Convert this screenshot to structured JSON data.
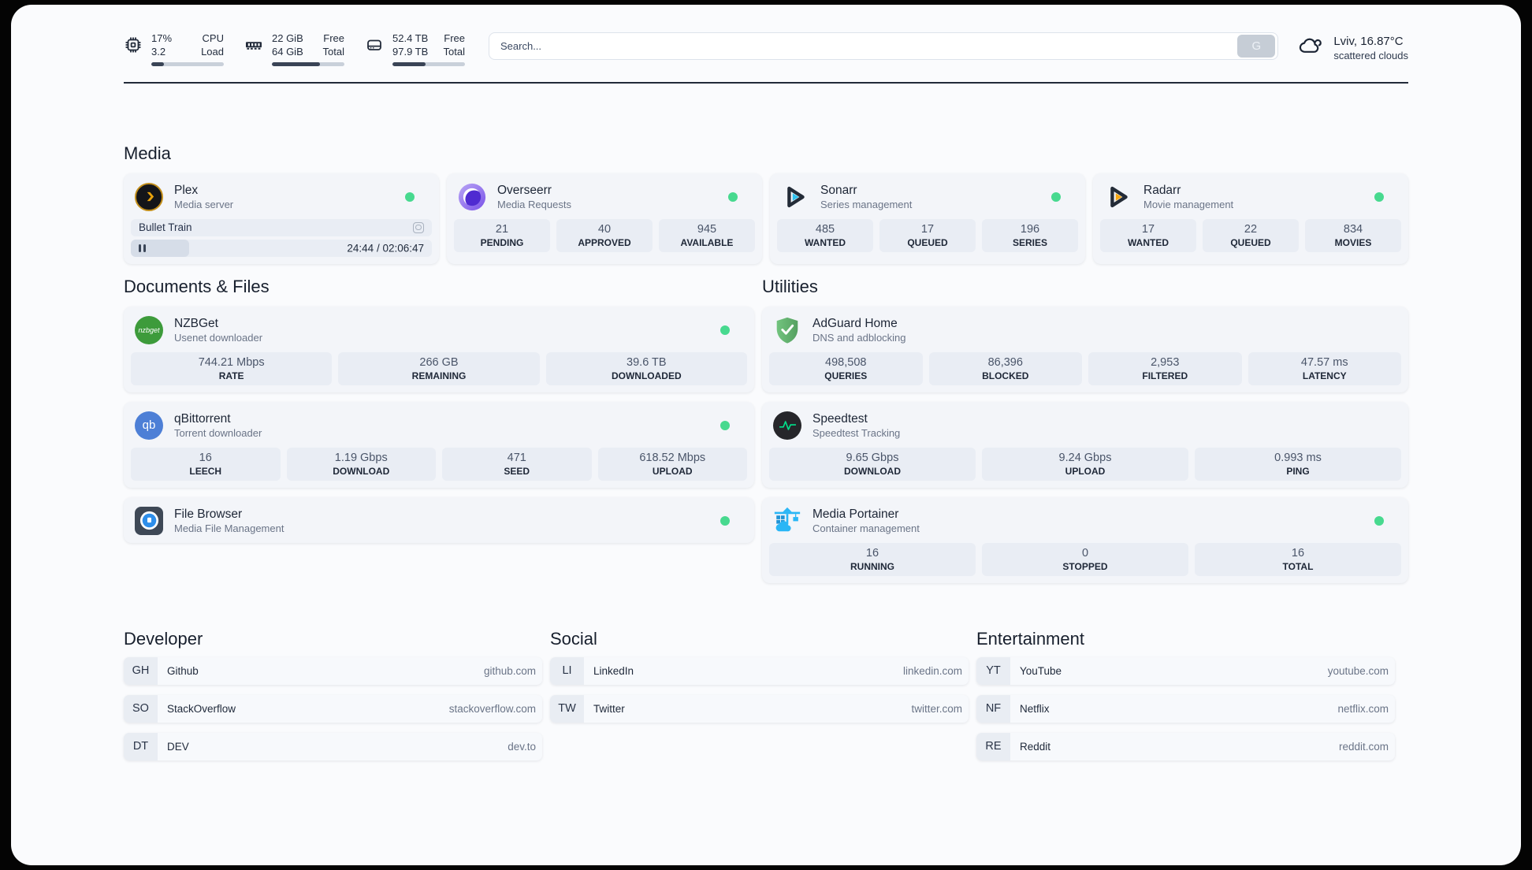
{
  "colors": {
    "status_online": "#47d98f",
    "panel_bg": "#fafbfd",
    "card_bg": "#f3f5f9",
    "tile_bg": "#e9edf4",
    "progress_fill": "#3a4456",
    "plex_gold": "#e8a20c",
    "sonarr_cyan": "#2fc2ef",
    "radarr_amber": "#f7a814",
    "overseerr_purple": "#4f2bd1",
    "nzbget_green": "#3d9b3b",
    "qbittorrent_blue": "#4d7fd6",
    "adguard_green": "#67b279",
    "speedtest_pulse": "#00e08a",
    "portainer_blue": "#2ab6f6"
  },
  "topbar": {
    "cpu": {
      "values": [
        "17%",
        "3.2"
      ],
      "labels": [
        "CPU",
        "Load"
      ],
      "progress_pct": 17
    },
    "ram": {
      "values": [
        "22 GiB",
        "64 GiB"
      ],
      "labels": [
        "Free",
        "Total"
      ],
      "progress_pct": 66
    },
    "disk": {
      "values": [
        "52.4 TB",
        "97.9 TB"
      ],
      "labels": [
        "Free",
        "Total"
      ],
      "progress_pct": 46
    },
    "search": {
      "placeholder": "Search...",
      "button_label": "G"
    },
    "weather": {
      "location": "Lviv, 16.87°C",
      "condition": "scattered clouds"
    }
  },
  "sections": {
    "media": {
      "title": "Media",
      "plex": {
        "title": "Plex",
        "subtitle": "Media server",
        "status": "online",
        "now_playing": "Bullet Train",
        "time_display": "24:44 / 02:06:47",
        "progress_pct": 19.5
      },
      "overseerr": {
        "title": "Overseerr",
        "subtitle": "Media Requests",
        "status": "online",
        "stats": [
          {
            "value": "21",
            "label": "PENDING"
          },
          {
            "value": "40",
            "label": "APPROVED"
          },
          {
            "value": "945",
            "label": "AVAILABLE"
          }
        ]
      },
      "sonarr": {
        "title": "Sonarr",
        "subtitle": "Series management",
        "status": "online",
        "stats": [
          {
            "value": "485",
            "label": "WANTED"
          },
          {
            "value": "17",
            "label": "QUEUED"
          },
          {
            "value": "196",
            "label": "SERIES"
          }
        ]
      },
      "radarr": {
        "title": "Radarr",
        "subtitle": "Movie management",
        "status": "online",
        "stats": [
          {
            "value": "17",
            "label": "WANTED"
          },
          {
            "value": "22",
            "label": "QUEUED"
          },
          {
            "value": "834",
            "label": "MOVIES"
          }
        ]
      }
    },
    "documents": {
      "title": "Documents & Files",
      "nzbget": {
        "title": "NZBGet",
        "subtitle": "Usenet downloader",
        "status": "online",
        "icon_text": "nzbget",
        "stats": [
          {
            "value": "744.21 Mbps",
            "label": "RATE"
          },
          {
            "value": "266 GB",
            "label": "REMAINING"
          },
          {
            "value": "39.6 TB",
            "label": "DOWNLOADED"
          }
        ]
      },
      "qbittorrent": {
        "title": "qBittorrent",
        "subtitle": "Torrent downloader",
        "status": "online",
        "icon_text": "qb",
        "stats": [
          {
            "value": "16",
            "label": "LEECH"
          },
          {
            "value": "1.19 Gbps",
            "label": "DOWNLOAD"
          },
          {
            "value": "471",
            "label": "SEED"
          },
          {
            "value": "618.52 Mbps",
            "label": "UPLOAD"
          }
        ]
      },
      "filebrowser": {
        "title": "File Browser",
        "subtitle": "Media File Management",
        "status": "online"
      }
    },
    "utilities": {
      "title": "Utilities",
      "adguard": {
        "title": "AdGuard Home",
        "subtitle": "DNS and adblocking",
        "stats": [
          {
            "value": "498,508",
            "label": "QUERIES"
          },
          {
            "value": "86,396",
            "label": "BLOCKED"
          },
          {
            "value": "2,953",
            "label": "FILTERED"
          },
          {
            "value": "47.57 ms",
            "label": "LATENCY"
          }
        ]
      },
      "speedtest": {
        "title": "Speedtest",
        "subtitle": "Speedtest Tracking",
        "stats": [
          {
            "value": "9.65 Gbps",
            "label": "DOWNLOAD"
          },
          {
            "value": "9.24 Gbps",
            "label": "UPLOAD"
          },
          {
            "value": "0.993 ms",
            "label": "PING"
          }
        ]
      },
      "portainer": {
        "title": "Media Portainer",
        "subtitle": "Container management",
        "status": "online",
        "stats": [
          {
            "value": "16",
            "label": "RUNNING"
          },
          {
            "value": "0",
            "label": "STOPPED"
          },
          {
            "value": "16",
            "label": "TOTAL"
          }
        ]
      }
    },
    "bookmarks": {
      "developer": {
        "title": "Developer",
        "items": [
          {
            "abbr": "GH",
            "name": "Github",
            "domain": "github.com"
          },
          {
            "abbr": "SO",
            "name": "StackOverflow",
            "domain": "stackoverflow.com"
          },
          {
            "abbr": "DT",
            "name": "DEV",
            "domain": "dev.to"
          }
        ]
      },
      "social": {
        "title": "Social",
        "items": [
          {
            "abbr": "LI",
            "name": "LinkedIn",
            "domain": "linkedin.com"
          },
          {
            "abbr": "TW",
            "name": "Twitter",
            "domain": "twitter.com"
          }
        ]
      },
      "entertainment": {
        "title": "Entertainment",
        "items": [
          {
            "abbr": "YT",
            "name": "YouTube",
            "domain": "youtube.com"
          },
          {
            "abbr": "NF",
            "name": "Netflix",
            "domain": "netflix.com"
          },
          {
            "abbr": "RE",
            "name": "Reddit",
            "domain": "reddit.com"
          }
        ]
      }
    }
  }
}
